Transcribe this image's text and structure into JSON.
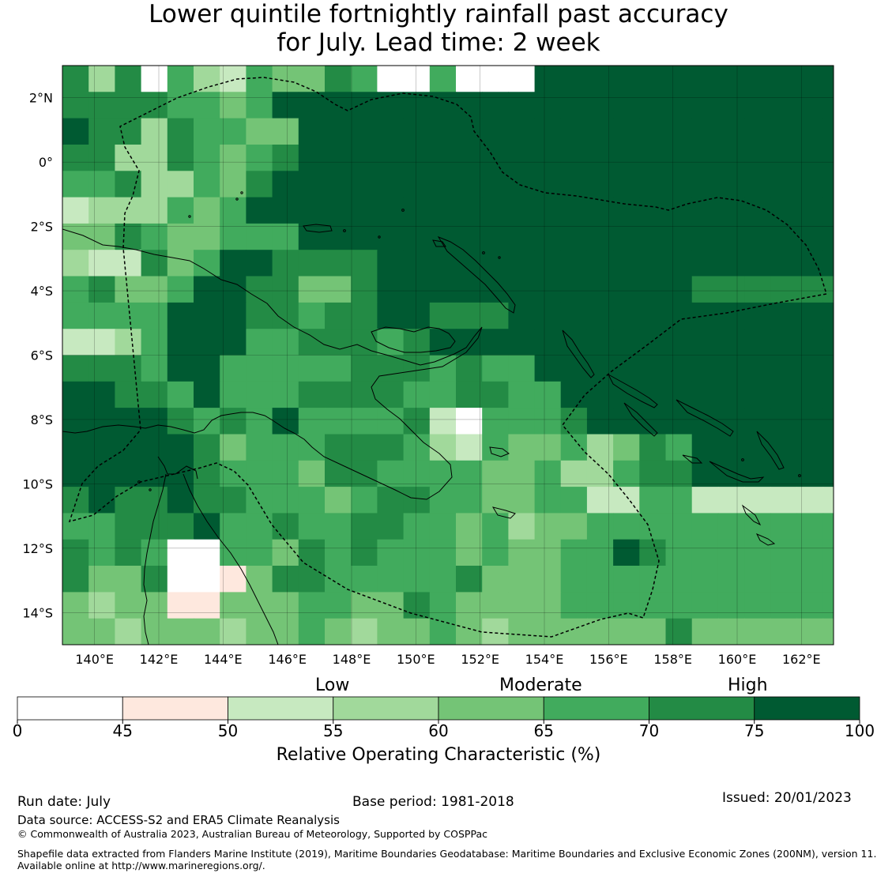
{
  "title": {
    "line1": "Lower quintile fortnightly rainfall past accuracy",
    "line2": "for July. Lead time: 2 week"
  },
  "map": {
    "lon_ticks": [
      "140°E",
      "142°E",
      "144°E",
      "146°E",
      "148°E",
      "150°E",
      "152°E",
      "154°E",
      "156°E",
      "158°E",
      "160°E",
      "162°E"
    ],
    "lat_ticks": [
      "2°N",
      "0°",
      "2°S",
      "4°S",
      "6°S",
      "8°S",
      "10°S",
      "12°S",
      "14°S"
    ],
    "lon_range": [
      139,
      163
    ],
    "lat_range": [
      -15,
      3
    ],
    "grid_cell_deg": 0.83,
    "region": "Papua New Guinea and surrounding waters",
    "boundary_style": "dashed",
    "grid": true
  },
  "colorbar": {
    "class_labels": [
      "Low",
      "Moderate",
      "High"
    ],
    "tick_labels": [
      "0",
      "45",
      "50",
      "55",
      "60",
      "65",
      "70",
      "75",
      "100"
    ],
    "bins": [
      {
        "from": 0,
        "to": 45,
        "color": "#ffffff"
      },
      {
        "from": 45,
        "to": 50,
        "color": "#fee8de"
      },
      {
        "from": 50,
        "to": 55,
        "color": "#c7e9c0"
      },
      {
        "from": 55,
        "to": 60,
        "color": "#a1d99b"
      },
      {
        "from": 60,
        "to": 65,
        "color": "#74c476"
      },
      {
        "from": 65,
        "to": 70,
        "color": "#41ab5d"
      },
      {
        "from": 70,
        "to": 75,
        "color": "#238b45"
      },
      {
        "from": 75,
        "to": 100,
        "color": "#005a32"
      }
    ],
    "label": "Relative Operating Characteristic (%)"
  },
  "footer": {
    "run_date": "Run date: July",
    "base_period": "Base period: 1981-2018",
    "issued": "Issued: 20/01/2023",
    "data_source": "Data source: ACCESS-S2 and ERA5 Climate Reanalysis",
    "copyright": "© Commonwealth of Australia 2023, Australian Bureau of Meteorology, Supported by COSPPac",
    "shapefile_line1": "Shapefile data extracted from Flanders Marine Institute (2019), Maritime Boundaries Geodatabase: Maritime Boundaries and Exclusive Economic Zones (200NM), version 11.",
    "shapefile_line2": "Available online at http://www.marineregions.org/."
  }
}
